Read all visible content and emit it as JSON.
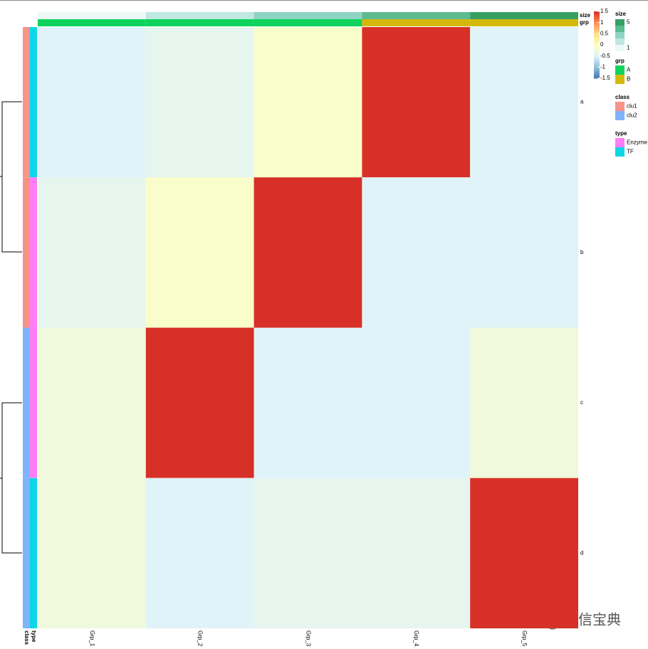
{
  "chart_data": {
    "type": "heatmap",
    "columns": [
      "Grp_1",
      "Grp_2",
      "Grp_3",
      "Grp_4",
      "Grp_5"
    ],
    "rows": [
      "a",
      "b",
      "c",
      "d"
    ],
    "values": [
      [
        -0.5,
        -0.4,
        -0.1,
        1.5,
        -0.5
      ],
      [
        -0.4,
        -0.1,
        1.5,
        -0.5,
        -0.5
      ],
      [
        -0.25,
        1.5,
        -0.5,
        -0.5,
        -0.25
      ],
      [
        -0.25,
        -0.5,
        -0.4,
        -0.4,
        1.5
      ]
    ],
    "colorscale": [
      "#4575B4",
      "#91BFDB",
      "#E0F3F8",
      "#FFFFBF",
      "#FEE090",
      "#FC8D59",
      "#D73027"
    ],
    "clim": [
      -1.5,
      1.5
    ],
    "cticks": [
      1.5,
      1,
      0.5,
      0,
      -0.5,
      -1,
      -1.5
    ],
    "column_annotations": [
      {
        "name": "size",
        "values": [
          1,
          2,
          3,
          4,
          5
        ],
        "colors": [
          "#EDF8F6",
          "#BFE8E0",
          "#8ED3C3",
          "#5DBB8F",
          "#35A062"
        ],
        "legend_ticks": [
          5,
          1
        ]
      },
      {
        "name": "grp",
        "values": [
          "A",
          "A",
          "A",
          "B",
          "B"
        ],
        "levels": [
          "A",
          "B"
        ],
        "colors": [
          "#10D35D",
          "#D4B90A"
        ]
      }
    ],
    "row_annotations": [
      {
        "name": "type",
        "values": [
          "TF",
          "Enzyme",
          "Enzyme",
          "TF"
        ],
        "levels": [
          "Enzyme",
          "TF"
        ],
        "colors": [
          "#FF7EF5",
          "#0CD7E6"
        ]
      },
      {
        "name": "class",
        "values": [
          "clu1",
          "clu1",
          "clu2",
          "clu2"
        ],
        "levels": [
          "clu1",
          "clu2"
        ],
        "colors": [
          "#F8938A",
          "#7FB3FB"
        ]
      }
    ],
    "watermark": "生信宝典"
  }
}
